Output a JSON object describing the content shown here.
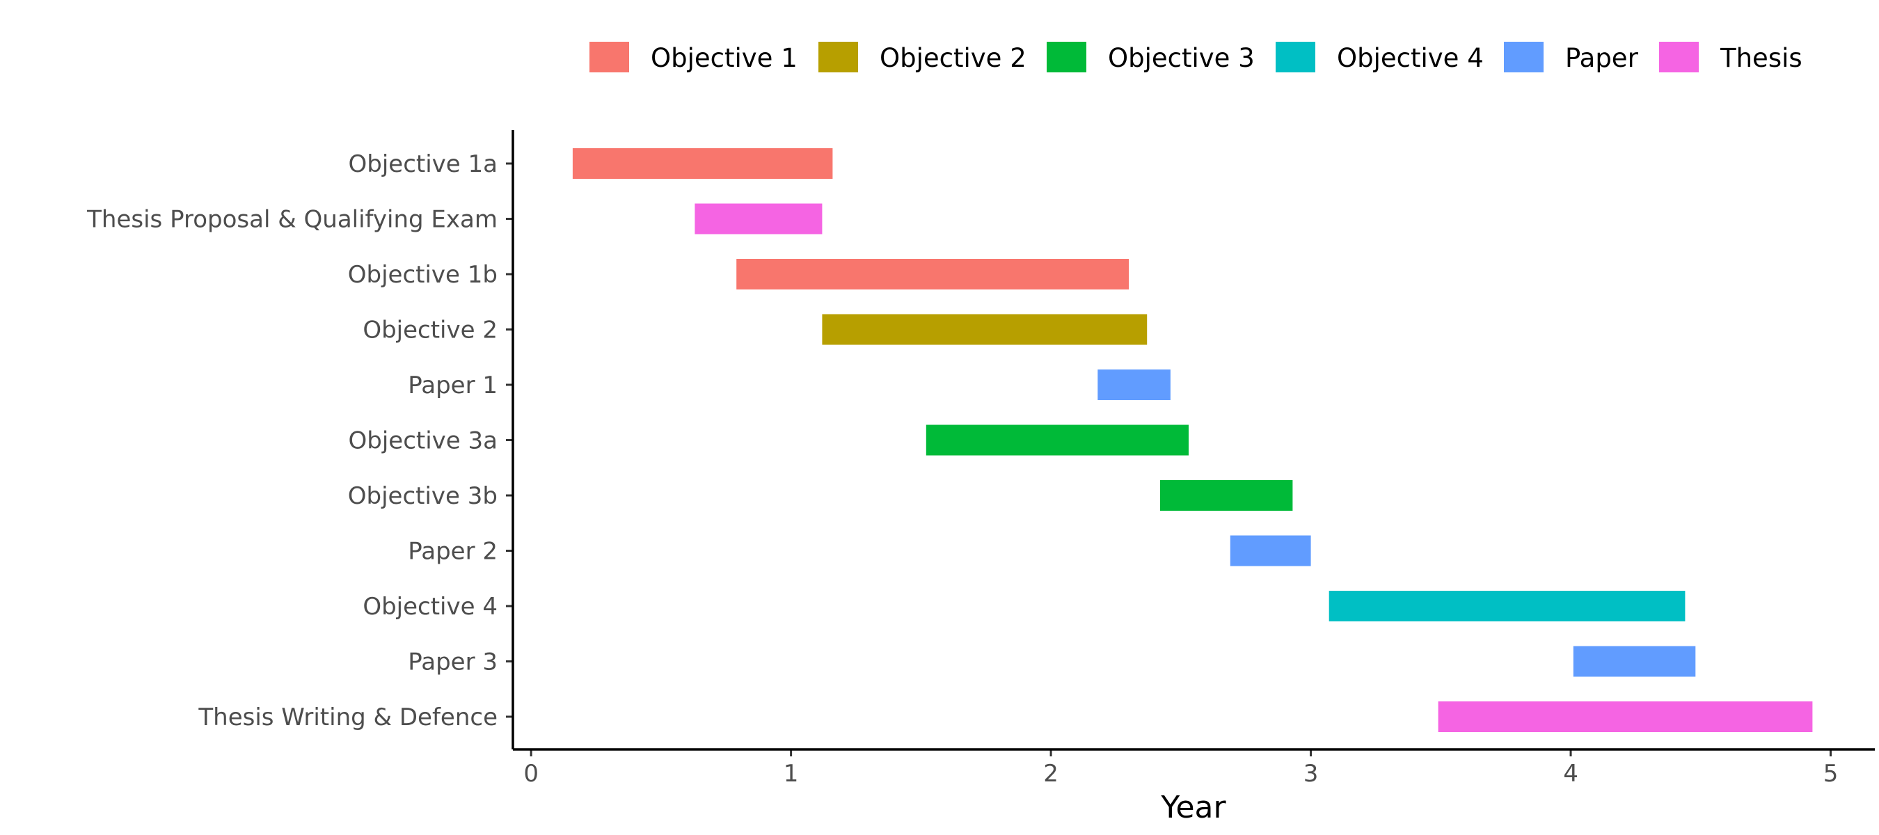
{
  "chart_data": {
    "type": "gantt",
    "title": "",
    "xlabel": "Year",
    "ylabel": "",
    "xlim": [
      -0.07,
      5.17
    ],
    "xticks": [
      0,
      1,
      2,
      3,
      4,
      5
    ],
    "grid": false,
    "legend": {
      "position": "top",
      "entries": [
        {
          "label": "Objective 1",
          "color": "#F8766D"
        },
        {
          "label": "Objective 2",
          "color": "#B79F00"
        },
        {
          "label": "Objective 3",
          "color": "#00BA38"
        },
        {
          "label": "Objective 4",
          "color": "#00BFC4"
        },
        {
          "label": "Paper",
          "color": "#619CFF"
        },
        {
          "label": "Thesis",
          "color": "#F564E3"
        }
      ]
    },
    "tasks": [
      {
        "name": "Objective 1a",
        "group": "Objective 1",
        "start": 0.16,
        "end": 1.16
      },
      {
        "name": "Thesis Proposal & Qualifying Exam",
        "group": "Thesis",
        "start": 0.63,
        "end": 1.12
      },
      {
        "name": "Objective 1b",
        "group": "Objective 1",
        "start": 0.79,
        "end": 2.3
      },
      {
        "name": "Objective 2",
        "group": "Objective 2",
        "start": 1.12,
        "end": 2.37
      },
      {
        "name": "Paper 1",
        "group": "Paper",
        "start": 2.18,
        "end": 2.46
      },
      {
        "name": "Objective 3a",
        "group": "Objective 3",
        "start": 1.52,
        "end": 2.53
      },
      {
        "name": "Objective 3b",
        "group": "Objective 3",
        "start": 2.42,
        "end": 2.93
      },
      {
        "name": "Paper 2",
        "group": "Paper",
        "start": 2.69,
        "end": 3.0
      },
      {
        "name": "Objective 4",
        "group": "Objective 4",
        "start": 3.07,
        "end": 4.44
      },
      {
        "name": "Paper 3",
        "group": "Paper",
        "start": 4.01,
        "end": 4.48
      },
      {
        "name": "Thesis Writing & Defence",
        "group": "Thesis",
        "start": 3.49,
        "end": 4.93
      }
    ]
  }
}
